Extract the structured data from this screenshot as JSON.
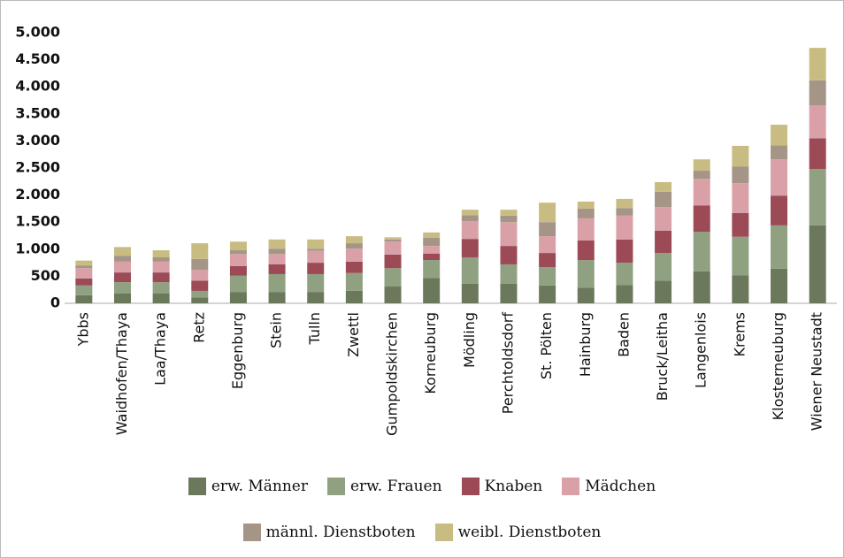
{
  "chart_data": {
    "type": "stacked_bar",
    "categories": [
      "Ybbs",
      "Waidhofen/Thaya",
      "Laa/Thaya",
      "Retz",
      "Eggenburg",
      "Stein",
      "Tulln",
      "Zwettl",
      "Gumpoldskirchen",
      "Korneuburg",
      "Mödling",
      "Perchtoldsdorf",
      "St. Pölten",
      "Hainburg",
      "Baden",
      "Bruck/Leitha",
      "Langenlois",
      "Krems",
      "Klosterneuburg",
      "Wiener Neustadt"
    ],
    "series": [
      {
        "name": "erw. Männer",
        "color": "#6b785c",
        "values": [
          150,
          180,
          180,
          110,
          210,
          210,
          210,
          230,
          310,
          470,
          360,
          360,
          330,
          290,
          340,
          420,
          590,
          520,
          640,
          1440
        ]
      },
      {
        "name": "erw. Frauen",
        "color": "#8fa181",
        "values": [
          180,
          210,
          210,
          120,
          300,
          330,
          330,
          330,
          340,
          330,
          490,
          360,
          340,
          510,
          410,
          510,
          730,
          710,
          800,
          1040
        ]
      },
      {
        "name": "Knaben",
        "color": "#9b4a56",
        "values": [
          130,
          180,
          180,
          190,
          180,
          180,
          210,
          210,
          250,
          120,
          340,
          340,
          260,
          360,
          430,
          410,
          490,
          440,
          550,
          570
        ]
      },
      {
        "name": "Mädchen",
        "color": "#d9a1a7",
        "values": [
          190,
          200,
          200,
          200,
          220,
          190,
          220,
          240,
          240,
          140,
          330,
          440,
          310,
          410,
          440,
          440,
          490,
          550,
          670,
          610
        ]
      },
      {
        "name": "männl. Dienstboten",
        "color": "#a59587",
        "values": [
          50,
          110,
          80,
          200,
          70,
          100,
          40,
          100,
          40,
          150,
          110,
          120,
          260,
          180,
          140,
          280,
          150,
          310,
          260,
          460
        ]
      },
      {
        "name": "weibl. Dienstboten",
        "color": "#c9bc83",
        "values": [
          90,
          160,
          130,
          290,
          160,
          170,
          170,
          130,
          40,
          100,
          100,
          110,
          360,
          130,
          170,
          180,
          210,
          380,
          380,
          600
        ]
      }
    ],
    "ylim": [
      0,
      5000
    ],
    "yticks": [
      0,
      500,
      {
        "value": 1000,
        "label": "1.000"
      },
      {
        "value": 1500,
        "label": "1.500"
      },
      {
        "value": 2000,
        "label": "2.000"
      },
      {
        "value": 2500,
        "label": "2.500"
      },
      {
        "value": 3000,
        "label": "3.000"
      },
      {
        "value": 3500,
        "label": "3.500"
      },
      {
        "value": 4000,
        "label": "4.000"
      },
      {
        "value": 4500,
        "label": "4.500"
      },
      {
        "value": 5000,
        "label": "5.000"
      }
    ]
  }
}
